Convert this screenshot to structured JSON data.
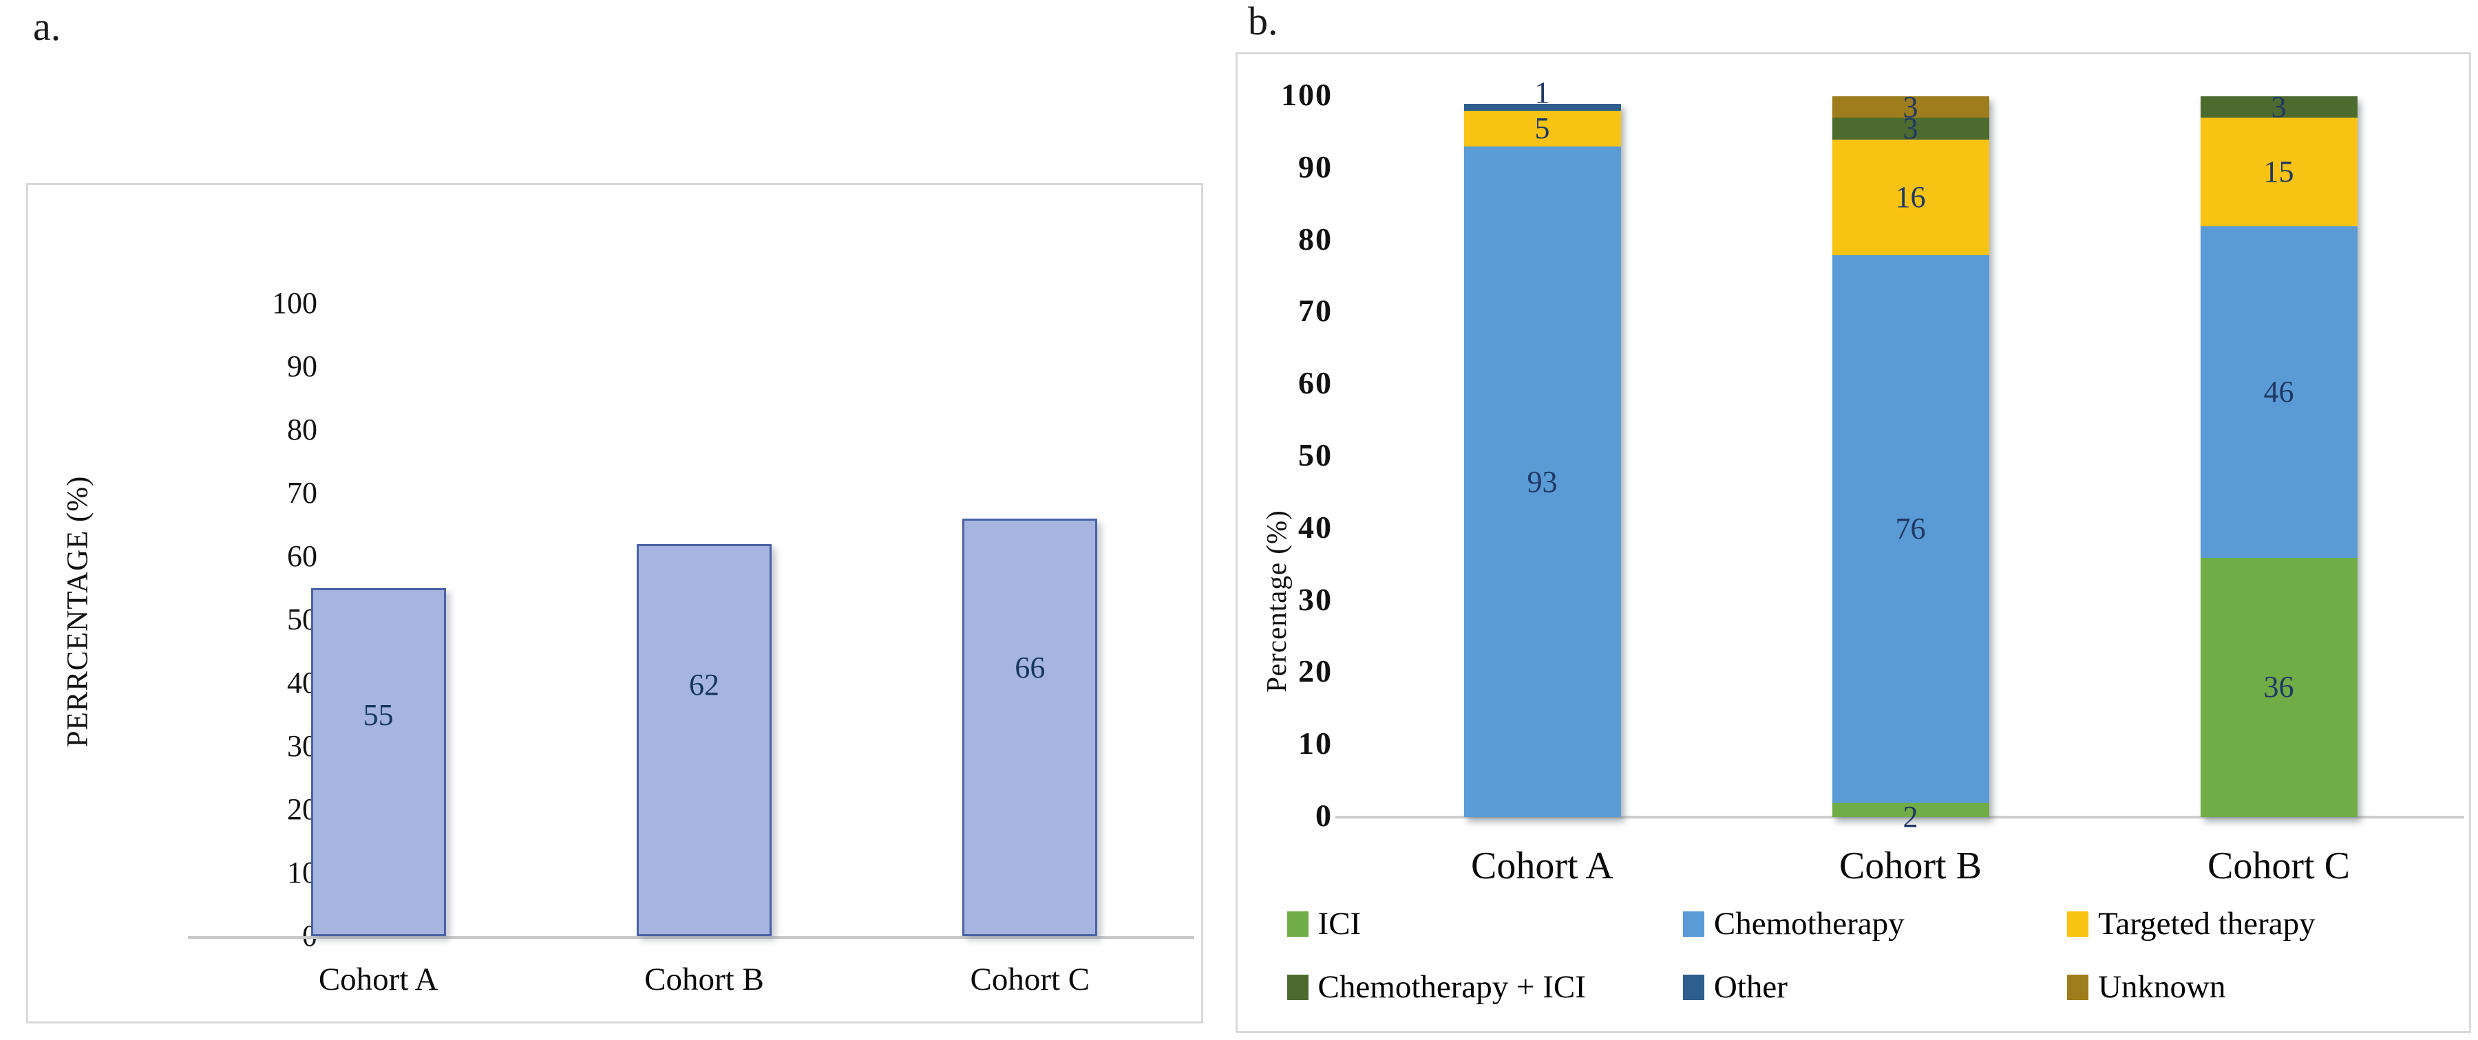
{
  "panel_a": {
    "label": "a.",
    "chart_data": {
      "type": "bar",
      "categories": [
        "Cohort A",
        "Cohort B",
        "Cohort C"
      ],
      "values": [
        55,
        62,
        66
      ],
      "title": "",
      "xlabel": "",
      "ylabel": "PERRCENTAGE (%)",
      "ylim": [
        0,
        100
      ],
      "yticks": [
        0,
        10,
        20,
        30,
        40,
        50,
        60,
        70,
        80,
        90,
        100
      ],
      "grid": false,
      "bar_fill": "#a6b5df",
      "bar_border": "#4a61a5",
      "value_label_color": "#17365d"
    }
  },
  "panel_b": {
    "label": "b.",
    "chart_data": {
      "type": "stacked_bar",
      "categories": [
        "Cohort A",
        "Cohort B",
        "Cohort C"
      ],
      "series": [
        {
          "name": "ICI",
          "color": "#70ad47",
          "values": [
            0,
            2,
            36
          ]
        },
        {
          "name": "Chemotherapy",
          "color": "#5b9bd5",
          "values": [
            93,
            76,
            46
          ]
        },
        {
          "name": "Targeted therapy",
          "color": "#f9c314",
          "values": [
            5,
            16,
            15
          ]
        },
        {
          "name": "Chemotherapy + ICI",
          "color": "#4e6b2f",
          "values": [
            0,
            3,
            3
          ]
        },
        {
          "name": "Other",
          "color": "#2e5e8e",
          "values": [
            1,
            0,
            0
          ]
        },
        {
          "name": "Unknown",
          "color": "#9d7d1c",
          "values": [
            0,
            3,
            0
          ]
        }
      ],
      "title": "",
      "xlabel": "",
      "ylabel": "Percentage (%)",
      "ylim": [
        0,
        100
      ],
      "yticks": [
        0,
        10,
        20,
        30,
        40,
        50,
        60,
        70,
        80,
        90,
        100
      ],
      "grid": false,
      "legend_position": "bottom",
      "legend_rows": [
        [
          "ICI",
          "Chemotherapy",
          "Targeted therapy"
        ],
        [
          "Chemotherapy + ICI",
          "Other",
          "Unknown"
        ]
      ],
      "value_label_color": "#1f3864"
    }
  }
}
